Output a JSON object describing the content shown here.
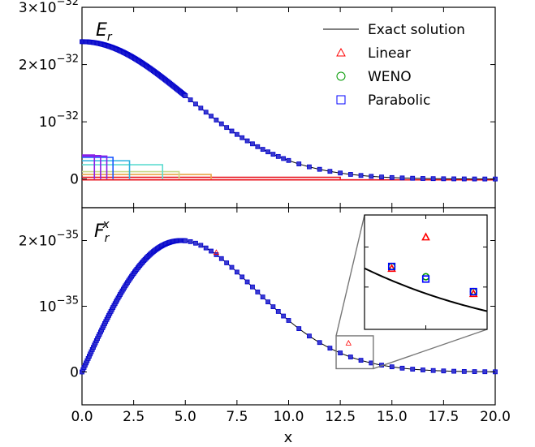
{
  "chart_data": [
    {
      "type": "line",
      "panel_label": "E_r",
      "xlim": [
        0,
        20
      ],
      "ylim": [
        -5e-33,
        3e-32
      ],
      "xticks": [
        0,
        2.5,
        5,
        7.5,
        10,
        12.5,
        15,
        17.5,
        20
      ],
      "yticks": [
        {
          "value": 0,
          "label": "0",
          "exp": ""
        },
        {
          "value": 1e-32,
          "label": "10",
          "exp": "−32"
        },
        {
          "value": 2e-32,
          "label": "2×10",
          "exp": "−32"
        },
        {
          "value": 3e-32,
          "label": "3×10",
          "exp": "−32"
        }
      ],
      "curve": {
        "formula": "gaussian",
        "amplitude": 2.4e-32,
        "sigma": 5.0
      },
      "legend": {
        "placement": "top-right",
        "entries": [
          {
            "label": "Exact solution",
            "marker": "line",
            "color": "#000000"
          },
          {
            "label": "Linear",
            "marker": "triangle",
            "color": "#ff0000"
          },
          {
            "label": "WENO",
            "marker": "circle",
            "color": "#009900"
          },
          {
            "label": "Parabolic",
            "marker": "square",
            "color": "#0000ff"
          }
        ]
      },
      "mesh_levels": [
        {
          "x_end": 12.5,
          "height": 3e-34,
          "color": "#e8141e"
        },
        {
          "x_end": 6.25,
          "height": 8e-34,
          "color": "#e9a64a"
        },
        {
          "x_end": 4.7,
          "height": 1.3e-33,
          "color": "#c8d88a"
        },
        {
          "x_end": 3.9,
          "height": 2.5e-33,
          "color": "#5ddbd0"
        },
        {
          "x_end": 2.3,
          "height": 3.2e-33,
          "color": "#2ab0e0"
        },
        {
          "x_end": 1.5,
          "height": 3.8e-33,
          "color": "#1a58ff"
        },
        {
          "x_end": 1.2,
          "height": 4e-33,
          "color": "#8a1ee6"
        },
        {
          "x_end": 0.9,
          "height": 4.1e-33,
          "color": "#8a1ee6"
        },
        {
          "x_end": 0.6,
          "height": 4.2e-33,
          "color": "#8a1ee6"
        }
      ]
    },
    {
      "type": "line",
      "panel_label": "F_r^x",
      "xlabel": "x",
      "xlim": [
        0,
        20
      ],
      "ylim": [
        -5e-36,
        2.5e-35
      ],
      "xticks": [
        0,
        2.5,
        5,
        7.5,
        10,
        12.5,
        15,
        17.5,
        20
      ],
      "xtick_labels": [
        "0.0",
        "2.5",
        "5.0",
        "7.5",
        "10.0",
        "12.5",
        "15.0",
        "17.5",
        "20.0"
      ],
      "yticks": [
        {
          "value": 0,
          "label": "0",
          "exp": ""
        },
        {
          "value": 1e-35,
          "label": "10",
          "exp": "−35"
        },
        {
          "value": 2e-35,
          "label": "2×10",
          "exp": "−35"
        }
      ],
      "curve": {
        "formula": "x*gaussian",
        "amplitude": 2e-35,
        "sigma": 4.8
      },
      "outliers": [
        {
          "x": 12.9,
          "y": 4.4e-36,
          "series": "Linear"
        },
        {
          "x": 6.5,
          "y": 1.82e-35,
          "series": "Linear"
        }
      ],
      "inset": {
        "zoom_xlim": [
          12.3,
          14.1
        ],
        "zoom_ylim": [
          5e-37,
          5.5e-36
        ],
        "points": [
          {
            "x": 12.7,
            "y": 3.15e-36,
            "series": "Linear"
          },
          {
            "x": 12.7,
            "y": 3.25e-36,
            "series": "WENO"
          },
          {
            "x": 12.7,
            "y": 3.25e-36,
            "series": "Parabolic"
          },
          {
            "x": 13.2,
            "y": 4.52e-36,
            "series": "Linear"
          },
          {
            "x": 13.2,
            "y": 2.8e-36,
            "series": "WENO"
          },
          {
            "x": 13.2,
            "y": 2.7e-36,
            "series": "Parabolic"
          },
          {
            "x": 13.9,
            "y": 2.05e-36,
            "series": "Linear"
          },
          {
            "x": 13.9,
            "y": 2.15e-36,
            "series": "WENO"
          },
          {
            "x": 13.9,
            "y": 2.15e-36,
            "series": "Parabolic"
          }
        ]
      }
    }
  ]
}
